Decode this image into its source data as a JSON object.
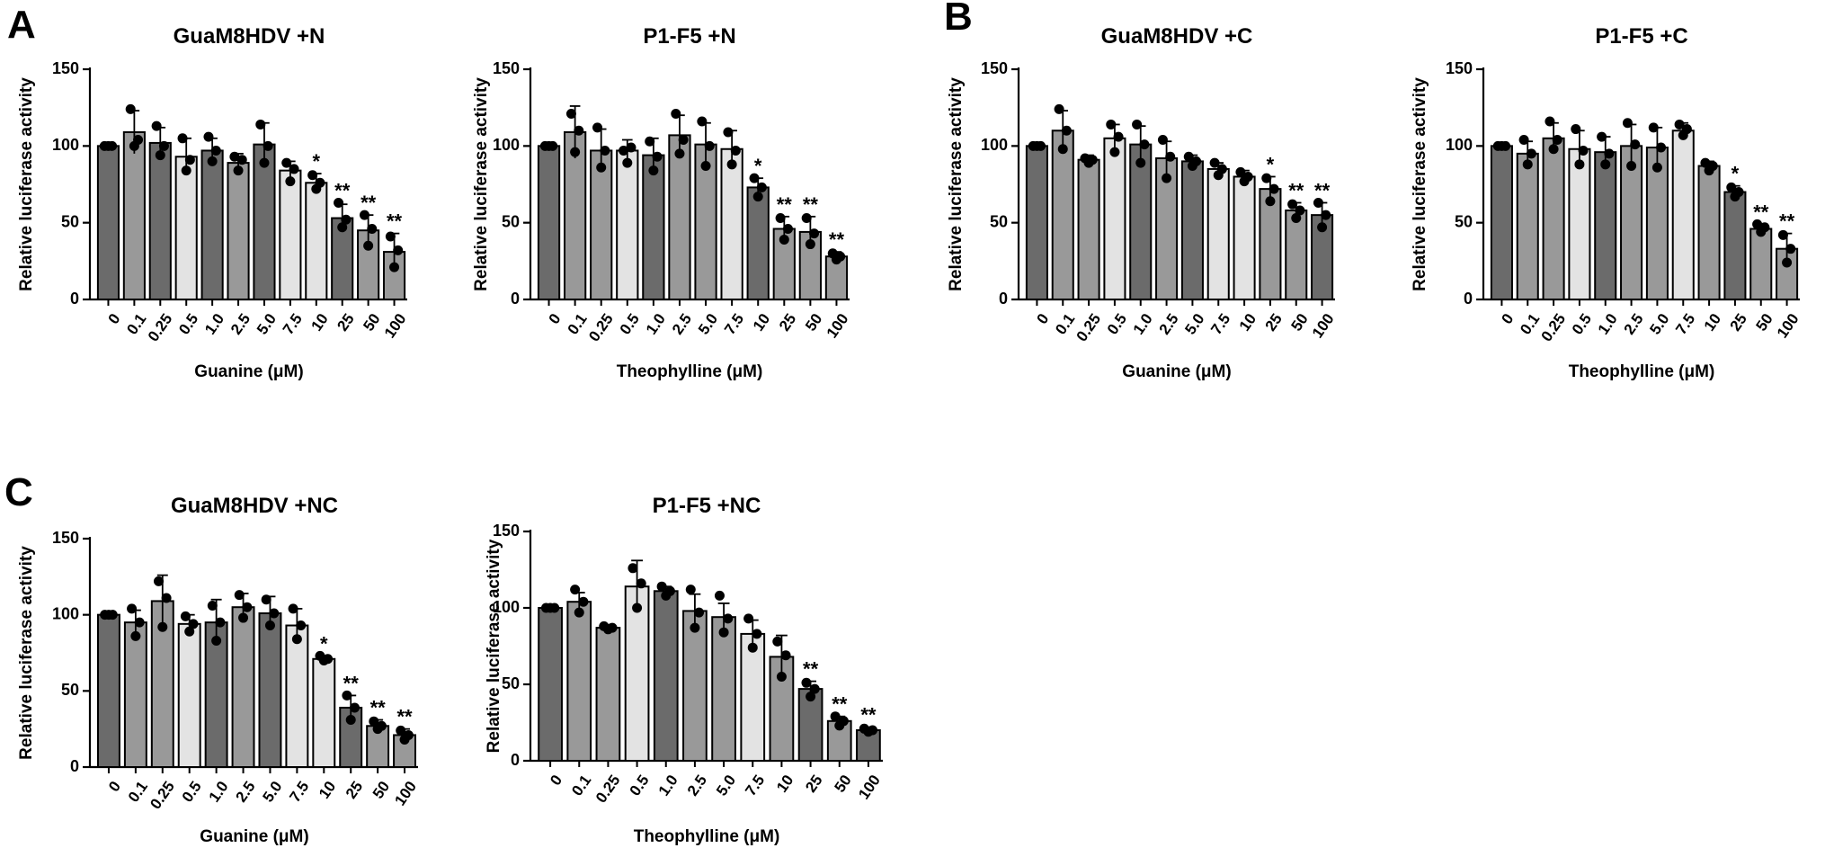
{
  "colors": {
    "dark": "#6b6b6b",
    "medium": "#999999",
    "light": "#e3e3e3",
    "outline": "#000000",
    "dot": "#000000"
  },
  "chart_data": [
    {
      "panel": "A",
      "type": "bar",
      "title": "GuaM8HDV +N",
      "xlabel": "Guanine (μM)",
      "ylabel": "Relative luciferase activity",
      "ylim": [
        0,
        150
      ],
      "yticks": [
        "0",
        "50",
        "100",
        "150"
      ],
      "categories": [
        "0",
        "0.1",
        "0.25",
        "0.5",
        "1.0",
        "2.5",
        "5.0",
        "7.5",
        "10",
        "25",
        "50",
        "100"
      ],
      "values": [
        100,
        109,
        102,
        93,
        97,
        89,
        101,
        84,
        76,
        53,
        45,
        31
      ],
      "errors": [
        1,
        14,
        10,
        12,
        8,
        6,
        14,
        6,
        6,
        9,
        10,
        12
      ],
      "fills": [
        "dark",
        "medium",
        "dark",
        "light",
        "dark",
        "medium",
        "dark",
        "light",
        "light",
        "dark",
        "medium",
        "medium"
      ],
      "points": [
        [
          100,
          100,
          100
        ],
        [
          124,
          100,
          104
        ],
        [
          113,
          94,
          100
        ],
        [
          105,
          84,
          91
        ],
        [
          106,
          90,
          97
        ],
        [
          93,
          84,
          91
        ],
        [
          114,
          89,
          100
        ],
        [
          89,
          77,
          85
        ],
        [
          81,
          72,
          76
        ],
        [
          63,
          47,
          52
        ],
        [
          55,
          35,
          46
        ],
        [
          41,
          21,
          32
        ]
      ],
      "significance": [
        "",
        "",
        "",
        "",
        "",
        "",
        "",
        "",
        "*",
        "**",
        "**",
        "**"
      ]
    },
    {
      "panel": "",
      "type": "bar",
      "title": "P1-F5 +N",
      "xlabel": "Theophylline (μM)",
      "ylabel": "Relative luciferase activity",
      "ylim": [
        0,
        150
      ],
      "yticks": [
        "0",
        "50",
        "100",
        "150"
      ],
      "categories": [
        "0",
        "0.1",
        "0.25",
        "0.5",
        "1.0",
        "2.5",
        "5.0",
        "7.5",
        "10",
        "25",
        "50",
        "100"
      ],
      "values": [
        100,
        109,
        97,
        97,
        94,
        107,
        101,
        98,
        73,
        46,
        44,
        28
      ],
      "errors": [
        1,
        17,
        14,
        7,
        11,
        13,
        14,
        12,
        6,
        8,
        10,
        3
      ],
      "fills": [
        "dark",
        "medium",
        "medium",
        "light",
        "dark",
        "medium",
        "medium",
        "light",
        "dark",
        "medium",
        "medium",
        "medium"
      ],
      "points": [
        [
          100,
          100,
          100
        ],
        [
          121,
          96,
          110
        ],
        [
          112,
          86,
          97
        ],
        [
          97,
          89,
          99
        ],
        [
          103,
          84,
          93
        ],
        [
          121,
          95,
          104
        ],
        [
          116,
          87,
          100
        ],
        [
          109,
          88,
          97
        ],
        [
          79,
          67,
          73
        ],
        [
          53,
          39,
          46
        ],
        [
          53,
          36,
          43
        ],
        [
          30,
          26,
          28
        ]
      ],
      "significance": [
        "",
        "",
        "",
        "",
        "",
        "",
        "",
        "",
        "*",
        "**",
        "**",
        "**"
      ]
    },
    {
      "panel": "B",
      "type": "bar",
      "title": "GuaM8HDV +C",
      "xlabel": "Guanine (μM)",
      "ylabel": "Relative luciferase activity",
      "ylim": [
        0,
        150
      ],
      "yticks": [
        "0",
        "50",
        "100",
        "150"
      ],
      "categories": [
        "0",
        "0.1",
        "0.25",
        "0.5",
        "1.0",
        "2.5",
        "5.0",
        "7.5",
        "10",
        "25",
        "50",
        "100"
      ],
      "values": [
        100,
        110,
        91,
        105,
        101,
        92,
        90,
        85,
        80,
        72,
        58,
        55
      ],
      "errors": [
        1,
        13,
        3,
        9,
        12,
        11,
        4,
        4,
        4,
        8,
        5,
        8
      ],
      "fills": [
        "dark",
        "medium",
        "medium",
        "light",
        "dark",
        "medium",
        "dark",
        "light",
        "light",
        "medium",
        "medium",
        "dark"
      ],
      "points": [
        [
          100,
          100,
          100
        ],
        [
          124,
          98,
          110
        ],
        [
          92,
          89,
          91
        ],
        [
          114,
          96,
          106
        ],
        [
          114,
          89,
          101
        ],
        [
          104,
          79,
          93
        ],
        [
          93,
          87,
          90
        ],
        [
          89,
          81,
          85
        ],
        [
          83,
          77,
          80
        ],
        [
          79,
          64,
          72
        ],
        [
          62,
          53,
          58
        ],
        [
          63,
          47,
          55
        ]
      ],
      "significance": [
        "",
        "",
        "",
        "",
        "",
        "",
        "",
        "",
        "",
        "*",
        "**",
        "**"
      ]
    },
    {
      "panel": "",
      "type": "bar",
      "title": "P1-F5 +C",
      "xlabel": "Theophylline (μM)",
      "ylabel": "Relative luciferase activity",
      "ylim": [
        0,
        150
      ],
      "yticks": [
        "0",
        "50",
        "100",
        "150"
      ],
      "categories": [
        "0",
        "0.1",
        "0.25",
        "0.5",
        "1.0",
        "2.5",
        "5.0",
        "7.5",
        "10",
        "25",
        "50",
        "100"
      ],
      "values": [
        100,
        95,
        105,
        98,
        96,
        100,
        99,
        110,
        87,
        70,
        46,
        33
      ],
      "errors": [
        1,
        8,
        10,
        12,
        10,
        14,
        13,
        5,
        3,
        4,
        3,
        10
      ],
      "fills": [
        "dark",
        "medium",
        "medium",
        "light",
        "dark",
        "medium",
        "medium",
        "light",
        "medium",
        "dark",
        "medium",
        "medium"
      ],
      "points": [
        [
          100,
          100,
          100
        ],
        [
          104,
          88,
          95
        ],
        [
          116,
          98,
          104
        ],
        [
          111,
          88,
          97
        ],
        [
          106,
          88,
          95
        ],
        [
          115,
          87,
          101
        ],
        [
          112,
          86,
          99
        ],
        [
          114,
          107,
          111
        ],
        [
          89,
          84,
          87
        ],
        [
          73,
          67,
          70
        ],
        [
          49,
          44,
          47
        ],
        [
          42,
          24,
          33
        ]
      ],
      "significance": [
        "",
        "",
        "",
        "",
        "",
        "",
        "",
        "",
        "",
        "*",
        "**",
        "**"
      ]
    },
    {
      "panel": "C",
      "type": "bar",
      "title": "GuaM8HDV +NC",
      "xlabel": "Guanine (μM)",
      "ylabel": "Relative luciferase activity",
      "ylim": [
        0,
        150
      ],
      "yticks": [
        "0",
        "50",
        "100",
        "150"
      ],
      "categories": [
        "0",
        "0.1",
        "0.25",
        "0.5",
        "1.0",
        "2.5",
        "5.0",
        "7.5",
        "10",
        "25",
        "50",
        "100"
      ],
      "values": [
        100,
        95,
        109,
        94,
        95,
        105,
        101,
        93,
        71,
        39,
        27,
        21
      ],
      "errors": [
        1,
        8,
        17,
        6,
        15,
        9,
        11,
        11,
        2,
        8,
        4,
        4
      ],
      "fills": [
        "dark",
        "medium",
        "medium",
        "light",
        "dark",
        "medium",
        "dark",
        "light",
        "light",
        "dark",
        "medium",
        "medium"
      ],
      "points": [
        [
          100,
          100,
          100
        ],
        [
          104,
          86,
          95
        ],
        [
          122,
          92,
          111
        ],
        [
          99,
          89,
          94
        ],
        [
          106,
          83,
          95
        ],
        [
          113,
          98,
          105
        ],
        [
          110,
          93,
          101
        ],
        [
          104,
          84,
          93
        ],
        [
          73,
          70,
          71
        ],
        [
          47,
          31,
          39
        ],
        [
          30,
          25,
          27
        ],
        [
          24,
          18,
          21
        ]
      ],
      "significance": [
        "",
        "",
        "",
        "",
        "",
        "",
        "",
        "",
        "*",
        "**",
        "**",
        "**"
      ]
    },
    {
      "panel": "",
      "type": "bar",
      "title": "P1-F5 +NC",
      "xlabel": "Theophylline (μM)",
      "ylabel": "Relative luciferase activity",
      "ylim": [
        0,
        150
      ],
      "yticks": [
        "0",
        "50",
        "100",
        "150"
      ],
      "categories": [
        "0",
        "0.1",
        "0.25",
        "0.5",
        "1.0",
        "2.5",
        "5.0",
        "7.5",
        "10",
        "25",
        "50",
        "100"
      ],
      "values": [
        100,
        104,
        87,
        114,
        111,
        98,
        94,
        83,
        68,
        47,
        26,
        20
      ],
      "errors": [
        1,
        6,
        2,
        17,
        3,
        11,
        9,
        9,
        14,
        5,
        3,
        2
      ],
      "fills": [
        "dark",
        "medium",
        "medium",
        "light",
        "dark",
        "medium",
        "medium",
        "light",
        "medium",
        "dark",
        "medium",
        "dark"
      ],
      "points": [
        [
          100,
          100,
          100
        ],
        [
          112,
          97,
          104
        ],
        [
          88,
          86,
          87
        ],
        [
          126,
          100,
          116
        ],
        [
          114,
          108,
          111
        ],
        [
          112,
          87,
          97
        ],
        [
          108,
          84,
          93
        ],
        [
          93,
          74,
          83
        ],
        [
          78,
          55,
          69
        ],
        [
          51,
          42,
          47
        ],
        [
          29,
          23,
          26
        ],
        [
          21,
          19,
          20
        ]
      ],
      "significance": [
        "",
        "",
        "",
        "",
        "",
        "",
        "",
        "",
        "",
        "**",
        "**",
        "**"
      ]
    }
  ]
}
